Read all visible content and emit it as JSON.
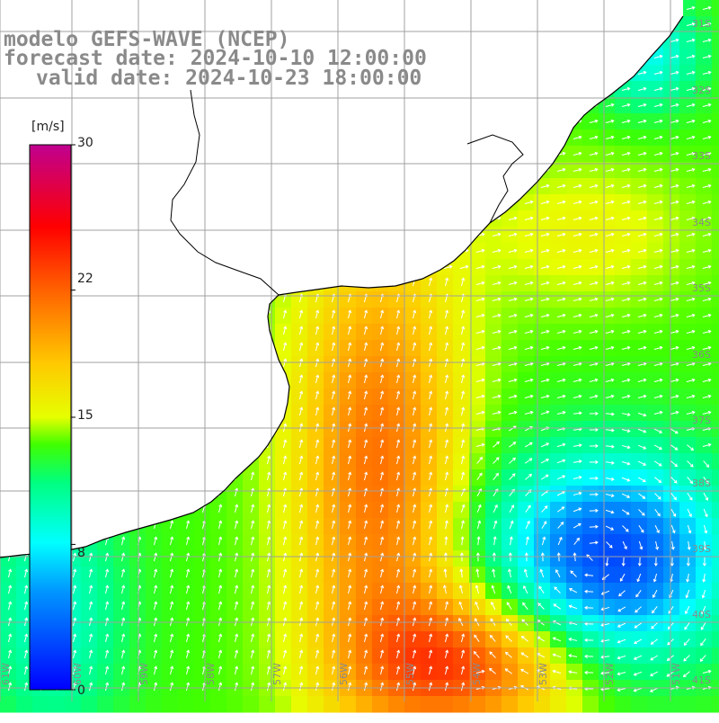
{
  "title": {
    "line1": "modelo GEFS-WAVE (NCEP)",
    "line2": "forecast date: 2024-10-10 12:00:00",
    "line3": "valid date: 2024-10-23 18:00:00"
  },
  "colorbar": {
    "unit": "[m/s]",
    "min": 0,
    "max": 30,
    "tick_labels": [
      "30",
      "22",
      "15",
      "8",
      "0"
    ],
    "tick_values": [
      30,
      22,
      15,
      8,
      0
    ]
  },
  "grid": {
    "lon_labels": [
      "61W",
      "60W",
      "59W",
      "58W",
      "57W",
      "56W",
      "55W",
      "54W",
      "53W",
      "52W",
      "51W"
    ],
    "lat_labels": [
      "31S",
      "32S",
      "33S",
      "34S",
      "35S",
      "36S",
      "37S",
      "38S",
      "39S",
      "40S",
      "41S"
    ]
  },
  "colors": {
    "land": "#ffffff",
    "coast": "#000000",
    "grid_line": "#a0a0a0",
    "label_gray": "#8a8a8a",
    "arrow": "#ffffff"
  },
  "wind_field": {
    "description_units": "m/s",
    "speed_range": [
      2,
      27
    ]
  }
}
